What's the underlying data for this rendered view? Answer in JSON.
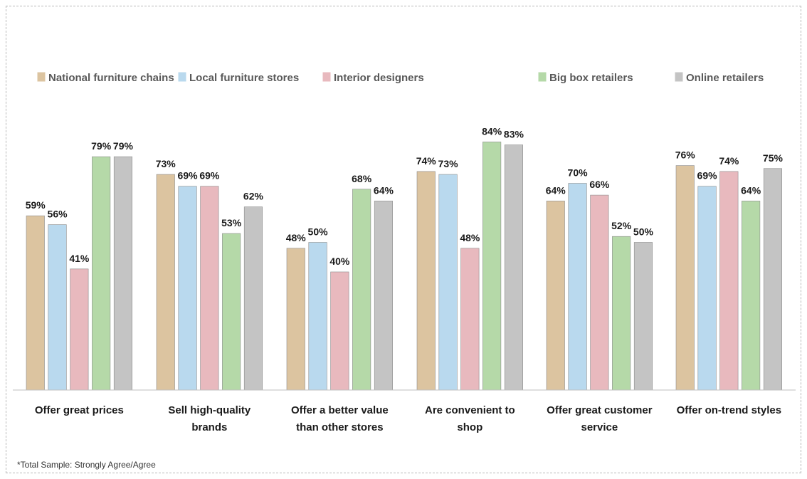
{
  "chart_data": {
    "type": "bar",
    "title": "",
    "xlabel": "",
    "ylabel": "",
    "ylim": [
      0,
      100
    ],
    "grid": false,
    "legend_position": "top",
    "value_format": "percent",
    "categories": [
      [
        "Offer great prices"
      ],
      [
        "Sell high-quality",
        "brands"
      ],
      [
        "Offer a better value",
        "than other stores"
      ],
      [
        "Are convenient to",
        "shop"
      ],
      [
        "Offer great customer",
        "service"
      ],
      [
        "Offer on-trend styles"
      ]
    ],
    "series": [
      {
        "name": "National furniture chains",
        "color": "#dcc4a0",
        "values": [
          59,
          73,
          48,
          74,
          64,
          76
        ]
      },
      {
        "name": "Local furniture stores",
        "color": "#b9d9ee",
        "values": [
          56,
          69,
          50,
          73,
          70,
          69
        ]
      },
      {
        "name": "Interior designers",
        "color": "#e8b9be",
        "values": [
          41,
          69,
          40,
          48,
          66,
          74
        ]
      },
      {
        "name": "Big box retailers",
        "color": "#b5d9a8",
        "values": [
          79,
          53,
          68,
          84,
          52,
          64
        ]
      },
      {
        "name": "Online retailers",
        "color": "#c4c4c4",
        "values": [
          79,
          62,
          64,
          83,
          50,
          75
        ]
      }
    ]
  },
  "footnote": "*Total Sample: Strongly Agree/Agree"
}
